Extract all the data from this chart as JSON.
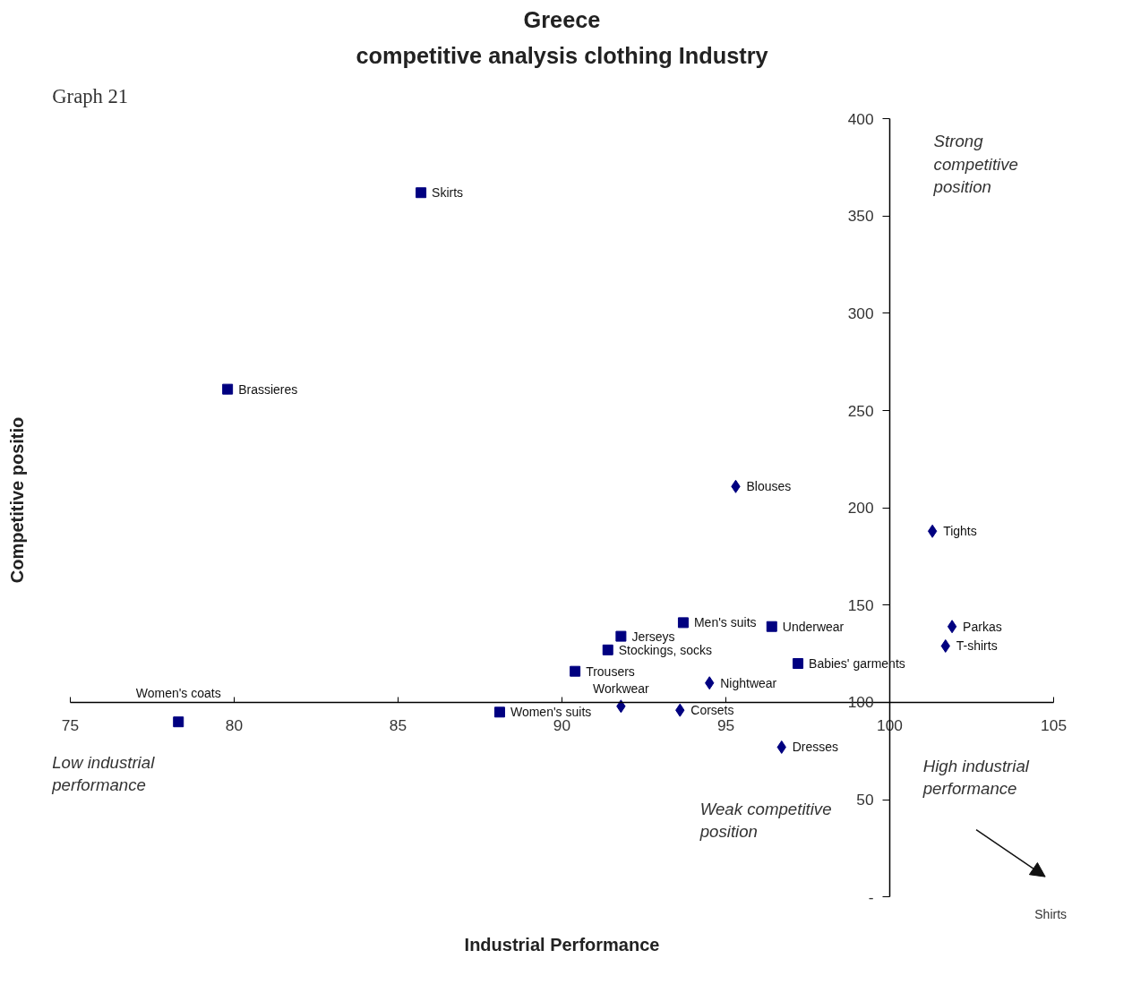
{
  "chart_data": {
    "type": "scatter",
    "title": "Greece",
    "subtitle": "competitive analysis clothing Industry",
    "xlabel": "Industrial Performance",
    "ylabel": "Competitive positio",
    "xlim": [
      75,
      105
    ],
    "xticks": [
      75,
      80,
      85,
      90,
      95,
      100,
      105
    ],
    "ylim": [
      0,
      400
    ],
    "yticks": [
      {
        "value": 0,
        "label": "-"
      },
      50,
      100,
      150,
      200,
      250,
      300,
      350,
      400
    ],
    "grid": false,
    "series": [
      {
        "color": "#000080",
        "marker": "square",
        "x": [
          85.7,
          79.8,
          93.7,
          96.4,
          91.8,
          91.4,
          97.2,
          90.4,
          78.3,
          88.1
        ],
        "values": [
          362,
          261,
          141,
          139,
          134,
          127,
          120,
          116,
          90,
          95
        ]
      },
      {
        "color": "#000080",
        "marker": "diamond",
        "x": [
          95.3,
          101.3,
          101.9,
          101.7,
          94.5,
          91.8,
          93.6,
          96.7
        ],
        "values": [
          211,
          188,
          139,
          129,
          110,
          98,
          96,
          77
        ]
      }
    ],
    "annotations": [
      {
        "text": "Skirts",
        "x": 85.7,
        "y": 362
      },
      {
        "text": "Brassieres",
        "x": 79.8,
        "y": 261
      },
      {
        "text": "Men's suits",
        "x": 93.7,
        "y": 141
      },
      {
        "text": "Underwear",
        "x": 96.4,
        "y": 139
      },
      {
        "text": "Jerseys",
        "x": 91.8,
        "y": 134
      },
      {
        "text": "Stockings, socks",
        "x": 91.4,
        "y": 127
      },
      {
        "text": "Babies' garments",
        "x": 97.2,
        "y": 120
      },
      {
        "text": "Trousers",
        "x": 90.4,
        "y": 116
      },
      {
        "text": "Women's coats",
        "x": 78.3,
        "y": 90
      },
      {
        "text": "Women's suits",
        "x": 88.1,
        "y": 95
      },
      {
        "text": "Blouses",
        "x": 95.3,
        "y": 211
      },
      {
        "text": "Tights",
        "x": 101.3,
        "y": 188
      },
      {
        "text": "Parkas",
        "x": 101.9,
        "y": 139
      },
      {
        "text": "T-shirts",
        "x": 101.7,
        "y": 129
      },
      {
        "text": "Nightwear",
        "x": 94.5,
        "y": 110
      },
      {
        "text": "Workwear",
        "x": 91.8,
        "y": 98
      },
      {
        "text": "Corsets",
        "x": 93.6,
        "y": 96
      },
      {
        "text": "Dresses",
        "x": 96.7,
        "y": 77
      },
      "Graph 21",
      "Strong\ncompetitive\nposition",
      "Low industrial\nperformance",
      "High industrial\nperformance",
      "Weak competitive\nposition",
      "Shirts"
    ]
  }
}
